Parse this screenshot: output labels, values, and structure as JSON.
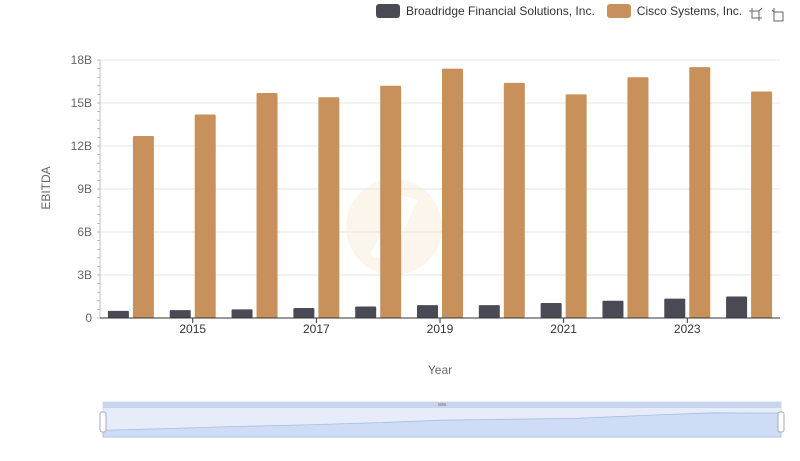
{
  "legend": [
    {
      "name": "Broadridge Financial Solutions, Inc.",
      "color": "#4a4a55"
    },
    {
      "name": "Cisco Systems, Inc.",
      "color": "#c8915c"
    }
  ],
  "toolbox": {
    "zoom_icon": "data-zoom-icon",
    "reset_icon": "zoom-reset-icon"
  },
  "chart_data": {
    "type": "bar",
    "categories": [
      "2014",
      "2015",
      "2016",
      "2017",
      "2018",
      "2019",
      "2020",
      "2021",
      "2022",
      "2023",
      "2024"
    ],
    "xtick_labels": [
      "2015",
      "2017",
      "2019",
      "2021",
      "2023"
    ],
    "series": [
      {
        "name": "Broadridge Financial Solutions, Inc.",
        "color": "#4a4a55",
        "values": [
          0.5,
          0.55,
          0.6,
          0.7,
          0.8,
          0.9,
          0.9,
          1.05,
          1.2,
          1.35,
          1.5
        ]
      },
      {
        "name": "Cisco Systems, Inc.",
        "color": "#c8915c",
        "values": [
          12.7,
          14.2,
          15.7,
          15.4,
          16.2,
          17.4,
          16.4,
          15.6,
          16.8,
          17.5,
          15.8
        ]
      }
    ],
    "yticks": [
      "0",
      "3B",
      "6B",
      "9B",
      "12B",
      "15B",
      "18B"
    ],
    "ylim": [
      0,
      18
    ],
    "xlabel": "Year",
    "ylabel": "EBITDA",
    "grid": true,
    "legend_position": "top-right"
  }
}
